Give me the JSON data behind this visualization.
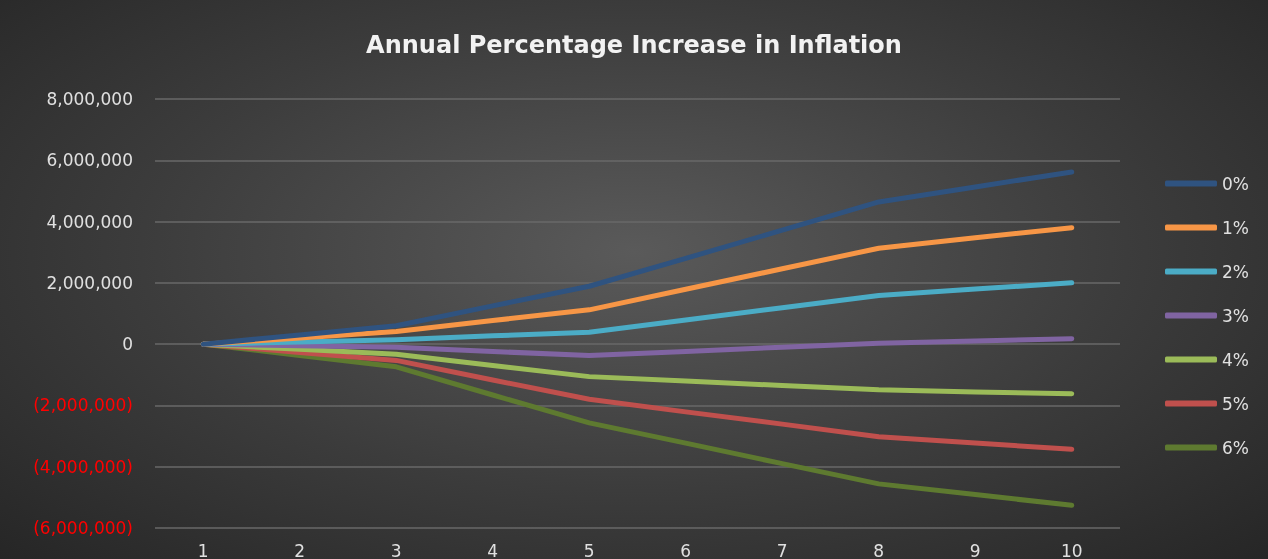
{
  "chart_data": {
    "type": "line",
    "title": "Annual Percentage Increase in Inflation",
    "categories": [
      "1",
      "2",
      "3",
      "4",
      "5",
      "6",
      "7",
      "8",
      "9",
      "10"
    ],
    "series": [
      {
        "name": "0%",
        "color": "#2f5380",
        "values": [
          0,
          300000,
          600000,
          1250000,
          1890000,
          2800000,
          3720000,
          4640000,
          5130000,
          5620000
        ]
      },
      {
        "name": "1%",
        "color": "#f79646",
        "values": [
          0,
          200000,
          410000,
          770000,
          1120000,
          1790000,
          2460000,
          3130000,
          3470000,
          3800000
        ]
      },
      {
        "name": "2%",
        "color": "#4bacc6",
        "values": [
          0,
          70000,
          140000,
          270000,
          390000,
          790000,
          1190000,
          1590000,
          1800000,
          2000000
        ]
      },
      {
        "name": "3%",
        "color": "#8064a2",
        "values": [
          0,
          -50000,
          -100000,
          -240000,
          -370000,
          -240000,
          -100000,
          30000,
          100000,
          180000
        ]
      },
      {
        "name": "4%",
        "color": "#9bbb59",
        "values": [
          0,
          -170000,
          -330000,
          -700000,
          -1060000,
          -1200000,
          -1350000,
          -1490000,
          -1560000,
          -1620000
        ]
      },
      {
        "name": "5%",
        "color": "#c0504d",
        "values": [
          0,
          -270000,
          -530000,
          -1170000,
          -1800000,
          -2210000,
          -2610000,
          -3020000,
          -3230000,
          -3430000
        ]
      },
      {
        "name": "6%",
        "color": "#5e7a30",
        "values": [
          0,
          -370000,
          -740000,
          -1660000,
          -2570000,
          -3230000,
          -3900000,
          -4560000,
          -4910000,
          -5260000
        ]
      }
    ],
    "ylim": [
      -6000000,
      8000000
    ],
    "yticks": [
      {
        "value": -6000000,
        "label": "(6,000,000)"
      },
      {
        "value": -4000000,
        "label": "(4,000,000)"
      },
      {
        "value": -2000000,
        "label": "(2,000,000)"
      },
      0,
      {
        "value": 2000000,
        "label": "2,000,000"
      },
      {
        "value": 4000000,
        "label": "4,000,000"
      },
      {
        "value": 6000000,
        "label": "6,000,000"
      },
      {
        "value": 8000000,
        "label": "8,000,000"
      }
    ],
    "grid": "y",
    "legend": "right",
    "marker": "none",
    "line_style": "solid"
  }
}
